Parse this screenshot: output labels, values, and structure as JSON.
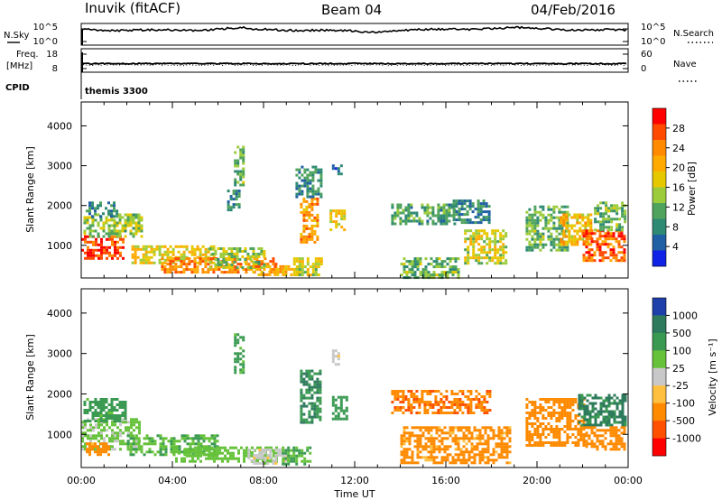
{
  "header": {
    "radar": "Inuvik (fitACF)",
    "beam": "Beam 04",
    "date": "04/Feb/2016"
  },
  "top_panels": {
    "nsky_label": "N.Sky",
    "nsearch_label": "N.Search",
    "noise_ticks_left": [
      "10^5",
      "10^0"
    ],
    "noise_ticks_right": [
      "10^5",
      "10^0"
    ],
    "freq_label": "Freq.",
    "freq_unit": "[MHz]",
    "freq_ticks": [
      "18",
      "8"
    ],
    "nave_label": "Nave",
    "nave_ticks": [
      "60",
      "0"
    ],
    "cpid_label": "CPID",
    "cpid_value": "themis 3300"
  },
  "chart_data": [
    {
      "type": "heatmap",
      "title": "",
      "ylabel": "Slant Range [km]",
      "ylim": [
        180,
        4600
      ],
      "yticks": [
        "4000",
        "3000",
        "2000",
        "1000"
      ],
      "xlim": [
        "00:00",
        "24:00"
      ],
      "colorbar": {
        "label": "Power [dB]",
        "ticks": [
          "28",
          "24",
          "20",
          "16",
          "12",
          "8",
          "4"
        ],
        "colors": [
          "#ff0000",
          "#ff4a00",
          "#ff8a00",
          "#ffaa00",
          "#e6c800",
          "#9ccc3c",
          "#4fa35c",
          "#2e8a73",
          "#1f5fa3",
          "#0f22e6"
        ]
      },
      "patches": [
        {
          "t0": 0.0,
          "t1": 1.8,
          "r0": 650,
          "r1": 1250,
          "val": 28
        },
        {
          "t0": 0.1,
          "t1": 2.6,
          "r0": 1200,
          "r1": 1800,
          "val": 14
        },
        {
          "t0": 0.2,
          "t1": 1.6,
          "r0": 1700,
          "r1": 2100,
          "val": 8
        },
        {
          "t0": 2.2,
          "t1": 5.8,
          "r0": 550,
          "r1": 1000,
          "val": 18
        },
        {
          "t0": 3.5,
          "t1": 8.6,
          "r0": 300,
          "r1": 700,
          "val": 24
        },
        {
          "t0": 5.6,
          "t1": 8.0,
          "r0": 450,
          "r1": 950,
          "val": 14
        },
        {
          "t0": 7.5,
          "t1": 9.6,
          "r0": 250,
          "r1": 500,
          "val": 22
        },
        {
          "t0": 6.7,
          "t1": 7.1,
          "r0": 2500,
          "r1": 3500,
          "val": 12
        },
        {
          "t0": 6.4,
          "t1": 6.9,
          "r0": 1900,
          "r1": 2400,
          "val": 8
        },
        {
          "t0": 9.3,
          "t1": 10.6,
          "r0": 250,
          "r1": 700,
          "val": 16
        },
        {
          "t0": 9.6,
          "t1": 10.4,
          "r0": 1100,
          "r1": 2200,
          "val": 22
        },
        {
          "t0": 9.4,
          "t1": 10.5,
          "r0": 2200,
          "r1": 3000,
          "val": 8
        },
        {
          "t0": 10.9,
          "t1": 11.6,
          "r0": 1400,
          "r1": 1900,
          "val": 18
        },
        {
          "t0": 11.0,
          "t1": 11.4,
          "r0": 2800,
          "r1": 3100,
          "val": 6
        },
        {
          "t0": 13.6,
          "t1": 16.4,
          "r0": 1550,
          "r1": 2050,
          "val": 10
        },
        {
          "t0": 16.3,
          "t1": 17.9,
          "r0": 1600,
          "r1": 2150,
          "val": 8
        },
        {
          "t0": 14.0,
          "t1": 16.5,
          "r0": 200,
          "r1": 700,
          "val": 12
        },
        {
          "t0": 16.8,
          "t1": 18.6,
          "r0": 550,
          "r1": 1400,
          "val": 16
        },
        {
          "t0": 19.5,
          "t1": 21.4,
          "r0": 900,
          "r1": 2000,
          "val": 12
        },
        {
          "t0": 21.0,
          "t1": 22.4,
          "r0": 1000,
          "r1": 1800,
          "val": 20
        },
        {
          "t0": 22.0,
          "t1": 23.8,
          "r0": 650,
          "r1": 1400,
          "val": 26
        },
        {
          "t0": 22.5,
          "t1": 23.9,
          "r0": 1400,
          "r1": 2100,
          "val": 12
        }
      ]
    },
    {
      "type": "heatmap",
      "title": "",
      "ylabel": "Slant Range [km]",
      "ylim": [
        180,
        4600
      ],
      "yticks": [
        "4000",
        "3000",
        "2000",
        "1000"
      ],
      "xlim": [
        "00:00",
        "24:00"
      ],
      "xticks": [
        "00:00",
        "04:00",
        "08:00",
        "12:00",
        "16:00",
        "20:00",
        "00:00"
      ],
      "xlabel": "Time UT",
      "colorbar": {
        "label": "Velocity [m s⁻¹]",
        "ticks": [
          "1000",
          "500",
          "100",
          "25",
          "-25",
          "-100",
          "-500",
          "-1000"
        ],
        "colors": [
          "#1f3faa",
          "#2e7a5c",
          "#3a9a52",
          "#66c23a",
          "#c8c8c8",
          "#ffc040",
          "#ff8a00",
          "#ff5000",
          "#ff0000"
        ]
      },
      "patches": [
        {
          "t0": 0.0,
          "t1": 2.6,
          "r0": 650,
          "r1": 1400,
          "val": 40
        },
        {
          "t0": 0.1,
          "t1": 2.0,
          "r0": 1300,
          "r1": 1900,
          "val": 150
        },
        {
          "t0": 0.2,
          "t1": 1.2,
          "r0": 500,
          "r1": 800,
          "val": -150
        },
        {
          "t0": 2.0,
          "t1": 6.0,
          "r0": 500,
          "r1": 1000,
          "val": 90
        },
        {
          "t0": 4.0,
          "t1": 8.6,
          "r0": 300,
          "r1": 700,
          "val": 60
        },
        {
          "t0": 7.3,
          "t1": 9.0,
          "r0": 280,
          "r1": 650,
          "val": 0
        },
        {
          "t0": 6.7,
          "t1": 7.1,
          "r0": 2500,
          "r1": 3500,
          "val": 150
        },
        {
          "t0": 8.8,
          "t1": 10.0,
          "r0": 250,
          "r1": 700,
          "val": 120
        },
        {
          "t0": 9.6,
          "t1": 10.5,
          "r0": 1300,
          "r1": 2600,
          "val": 500
        },
        {
          "t0": 11.0,
          "t1": 11.6,
          "r0": 1400,
          "r1": 1950,
          "val": 200
        },
        {
          "t0": 11.0,
          "t1": 11.3,
          "r0": 2700,
          "r1": 3100,
          "val": 0
        },
        {
          "t0": 13.6,
          "t1": 17.9,
          "r0": 1550,
          "r1": 2100,
          "val": -450
        },
        {
          "t0": 14.0,
          "t1": 18.8,
          "r0": 300,
          "r1": 1200,
          "val": -150
        },
        {
          "t0": 19.5,
          "t1": 22.0,
          "r0": 700,
          "r1": 1900,
          "val": -200
        },
        {
          "t0": 21.8,
          "t1": 23.9,
          "r0": 1200,
          "r1": 2000,
          "val": 600
        },
        {
          "t0": 22.0,
          "t1": 23.9,
          "r0": 600,
          "r1": 1200,
          "val": -200
        }
      ]
    }
  ]
}
